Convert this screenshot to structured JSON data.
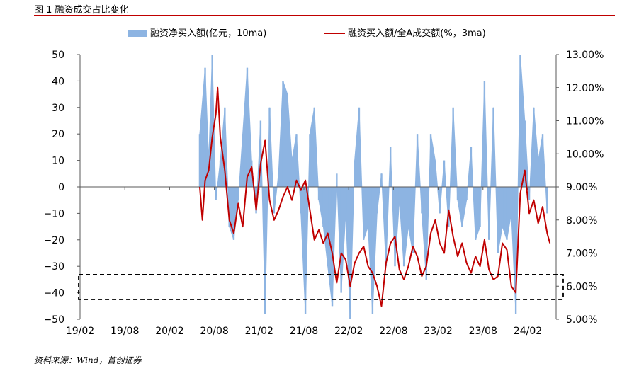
{
  "figure": {
    "title": "图 1 融资成交占比变化",
    "source": "资料来源：Wind，首创证券"
  },
  "colors": {
    "bar": "#8db4e2",
    "line": "#c00000",
    "rule": "#c00000",
    "axis": "#595959"
  },
  "chart_data": {
    "type": "area",
    "grid": false,
    "legend": "top-center",
    "x_ticks": [
      "19/02",
      "19/08",
      "20/02",
      "20/08",
      "21/02",
      "21/08",
      "22/02",
      "22/08",
      "23/02",
      "23/08",
      "24/02"
    ],
    "x_range": [
      "2019-02",
      "2024-05"
    ],
    "y_left": {
      "ticks": [
        50,
        40,
        30,
        20,
        10,
        0,
        -10,
        -20,
        -30,
        -40,
        -50
      ],
      "range": [
        -50,
        50
      ]
    },
    "y_right": {
      "ticks": [
        "13.00%",
        "12.00%",
        "11.00%",
        "10.00%",
        "9.00%",
        "8.00%",
        "7.00%",
        "6.00%",
        "5.00%"
      ],
      "range": [
        5,
        13
      ],
      "unit": "%"
    },
    "highlight_band": {
      "y_right_range": [
        5.6,
        6.35
      ],
      "style": "dashed-box"
    },
    "series": [
      {
        "name": "融资净买入额(亿元，10ma)",
        "axis": "left",
        "kind": "area",
        "x": [
          20.42,
          20.48,
          20.52,
          20.56,
          20.6,
          20.65,
          20.7,
          20.75,
          20.8,
          20.85,
          20.9,
          20.95,
          21.0,
          21.05,
          21.1,
          21.15,
          21.2,
          21.25,
          21.3,
          21.35,
          21.4,
          21.45,
          21.5,
          21.55,
          21.6,
          21.65,
          21.7,
          21.75,
          21.8,
          21.85,
          21.9,
          21.95,
          22.0,
          22.05,
          22.1,
          22.15,
          22.2,
          22.25,
          22.3,
          22.35,
          22.4,
          22.45,
          22.5,
          22.55,
          22.6,
          22.65,
          22.7,
          22.75,
          22.8,
          22.85,
          22.9,
          22.95,
          23.0,
          23.05,
          23.1,
          23.15,
          23.2,
          23.25,
          23.3,
          23.35,
          23.4,
          23.45,
          23.5,
          23.55,
          23.6,
          23.65,
          23.7,
          23.75,
          23.8,
          23.85,
          23.9,
          23.95,
          24.0,
          24.05,
          24.1,
          24.15,
          24.2,
          24.25,
          24.3
        ],
        "values": [
          20,
          45,
          10,
          50,
          -5,
          10,
          30,
          -15,
          -20,
          -5,
          20,
          45,
          10,
          -10,
          25,
          -48,
          30,
          -10,
          5,
          40,
          35,
          10,
          20,
          -10,
          -48,
          20,
          30,
          -5,
          -15,
          -30,
          -45,
          5,
          -40,
          -10,
          -50,
          10,
          30,
          -20,
          -15,
          -48,
          -10,
          5,
          -30,
          15,
          -30,
          -5,
          -30,
          -15,
          -25,
          20,
          -10,
          -35,
          20,
          10,
          -10,
          10,
          -15,
          30,
          -5,
          -15,
          -5,
          15,
          -20,
          -15,
          40,
          -20,
          30,
          -25,
          -15,
          -20,
          -10,
          -48,
          50,
          25,
          -5,
          30,
          10,
          20,
          -10
        ],
        "note": "approximate; values beyond ±50 clipped"
      },
      {
        "name": "融资买入额/全A成交额(%，3ma)",
        "axis": "right",
        "kind": "line",
        "x": [
          20.42,
          20.45,
          20.48,
          20.52,
          20.56,
          20.6,
          20.62,
          20.65,
          20.7,
          20.75,
          20.8,
          20.85,
          20.9,
          20.95,
          21.0,
          21.05,
          21.1,
          21.15,
          21.2,
          21.25,
          21.3,
          21.35,
          21.4,
          21.45,
          21.5,
          21.55,
          21.6,
          21.65,
          21.7,
          21.75,
          21.8,
          21.85,
          21.9,
          21.95,
          22.0,
          22.05,
          22.1,
          22.15,
          22.2,
          22.25,
          22.3,
          22.35,
          22.4,
          22.45,
          22.5,
          22.55,
          22.6,
          22.65,
          22.7,
          22.75,
          22.8,
          22.85,
          22.9,
          22.95,
          23.0,
          23.05,
          23.1,
          23.15,
          23.2,
          23.25,
          23.3,
          23.35,
          23.4,
          23.45,
          23.5,
          23.55,
          23.6,
          23.65,
          23.7,
          23.75,
          23.8,
          23.85,
          23.9,
          23.95,
          24.0,
          24.05,
          24.1,
          24.15,
          24.2,
          24.25,
          24.3,
          24.33
        ],
        "values": [
          9.0,
          8.0,
          9.2,
          9.5,
          10.5,
          11.2,
          12.0,
          10.5,
          9.5,
          8.0,
          7.6,
          8.5,
          7.8,
          9.3,
          9.6,
          8.3,
          9.7,
          10.4,
          8.6,
          8.0,
          8.3,
          8.7,
          9.0,
          8.6,
          9.2,
          8.9,
          9.2,
          8.3,
          7.4,
          7.7,
          7.3,
          7.6,
          7.0,
          6.1,
          7.0,
          6.8,
          6.0,
          6.7,
          7.0,
          7.2,
          6.6,
          6.4,
          6.0,
          5.4,
          6.7,
          7.3,
          7.5,
          6.5,
          6.2,
          6.6,
          7.2,
          6.9,
          6.3,
          6.6,
          7.6,
          8.0,
          7.3,
          7.0,
          8.3,
          7.5,
          6.9,
          7.3,
          6.7,
          6.4,
          6.9,
          6.6,
          7.4,
          6.5,
          6.2,
          6.3,
          7.3,
          7.1,
          6.0,
          5.8,
          8.8,
          9.5,
          8.2,
          8.6,
          7.9,
          8.4,
          7.6,
          7.3
        ]
      }
    ]
  }
}
